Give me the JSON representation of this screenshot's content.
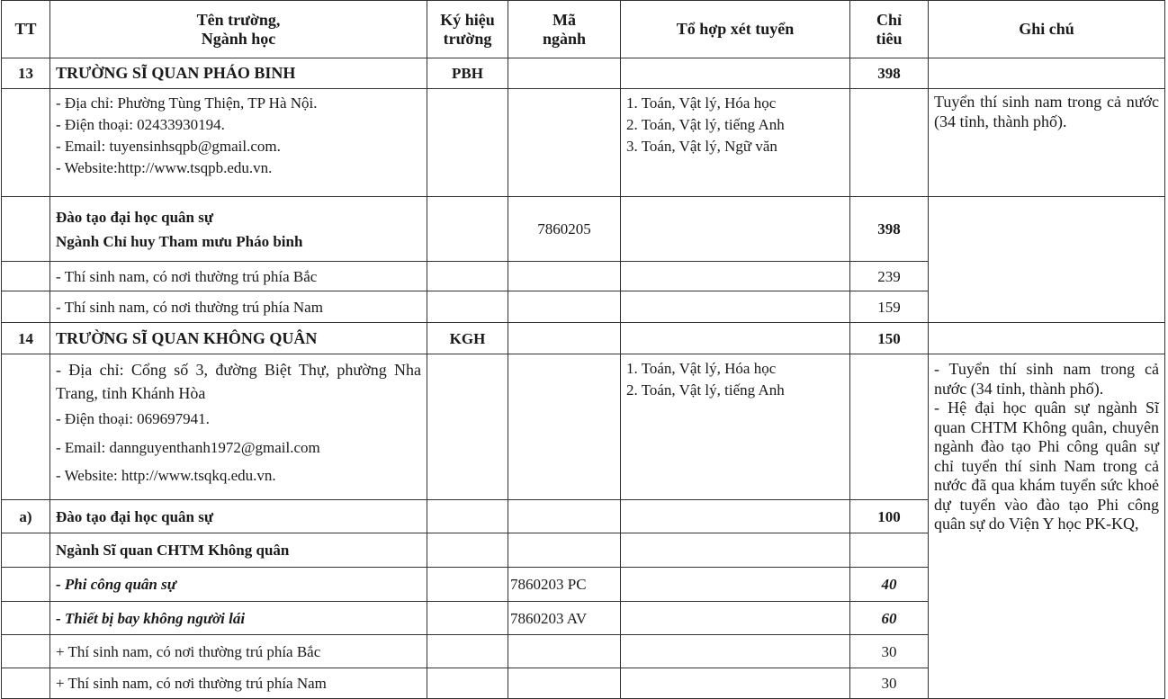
{
  "headers": {
    "tt": "TT",
    "name_line1": "Tên trường,",
    "name_line2": "Ngành học",
    "code_line1": "Ký hiệu",
    "code_line2": "trường",
    "major_line1": "Mã",
    "major_line2": "ngành",
    "combos": "Tổ hợp xét tuyển",
    "quota_line1": "Chỉ",
    "quota_line2": "tiêu",
    "notes": "Ghi chú"
  },
  "school13": {
    "tt": "13",
    "name": "TRƯỜNG SĨ QUAN PHÁO BINH",
    "code": "PBH",
    "quota": "398",
    "info": [
      "- Địa chỉ: Phường Tùng Thiện, TP Hà Nội.",
      "- Điện thoại: 02433930194.",
      "- Email: tuyensinhsqpb@gmail.com.",
      "- Website:http://www.tsqpb.edu.vn."
    ],
    "combos": [
      "1. Toán, Vật lý, Hóa học",
      "2. Toán, Vật lý, tiếng Anh",
      "3. Toán, Vật lý, Ngữ văn"
    ],
    "note": "Tuyển thí sinh nam trong cả nước (34 tỉnh, thành phố).",
    "program_line1": "Đào tạo đại học quân sự",
    "program_line2": "Ngành Chỉ huy Tham mưu Pháo binh",
    "program_code": "7860205",
    "program_quota": "398",
    "north_label": "- Thí sinh nam, có nơi thường trú phía Bắc",
    "north_quota": "239",
    "south_label": "- Thí sinh nam, có nơi thường trú phía Nam",
    "south_quota": "159"
  },
  "school14": {
    "tt": "14",
    "name": "TRƯỜNG SĨ QUAN KHÔNG QUÂN",
    "code": "KGH",
    "quota": "150",
    "info": [
      "- Địa chỉ: Cổng số 3, đường Biệt Thự, phường Nha Trang, tỉnh Khánh Hòa",
      "- Điện thoại: 069697941.",
      "- Email: dannguyenthanh1972@gmail.com",
      "- Website: http://www.tsqkq.edu.vn."
    ],
    "combos": [
      "1. Toán, Vật lý, Hóa học",
      "2. Toán, Vật lý, tiếng Anh"
    ],
    "notes": [
      "- Tuyển thí sinh nam trong cả nước (34 tỉnh, thành phố).",
      "- Hệ đại học quân sự ngành Sĩ quan CHTM Không quân, chuyên ngành đào tạo Phi công quân sự chỉ tuyển thí sinh Nam trong cả nước đã qua khám tuyển sức khoẻ dự tuyển vào đào tạo Phi công quân sự do Viện Y học PK-KQ,"
    ],
    "section_tt": "a)",
    "section_label": "Đào tạo đại học quân sự",
    "section_quota": "100",
    "major_label": "Ngành Sĩ quan CHTM Không quân",
    "pilot_label": "- Phi công quân sự",
    "pilot_code": "7860203 PC",
    "pilot_quota": "40",
    "uav_label": "- Thiết bị bay không người lái",
    "uav_code": "7860203 AV",
    "uav_quota": "60",
    "north_label": "+ Thí sinh nam, có nơi thường trú phía Bắc",
    "north_quota": "30",
    "south_label": "+ Thí sinh nam, có nơi thường trú phía Nam",
    "south_quota": "30"
  }
}
